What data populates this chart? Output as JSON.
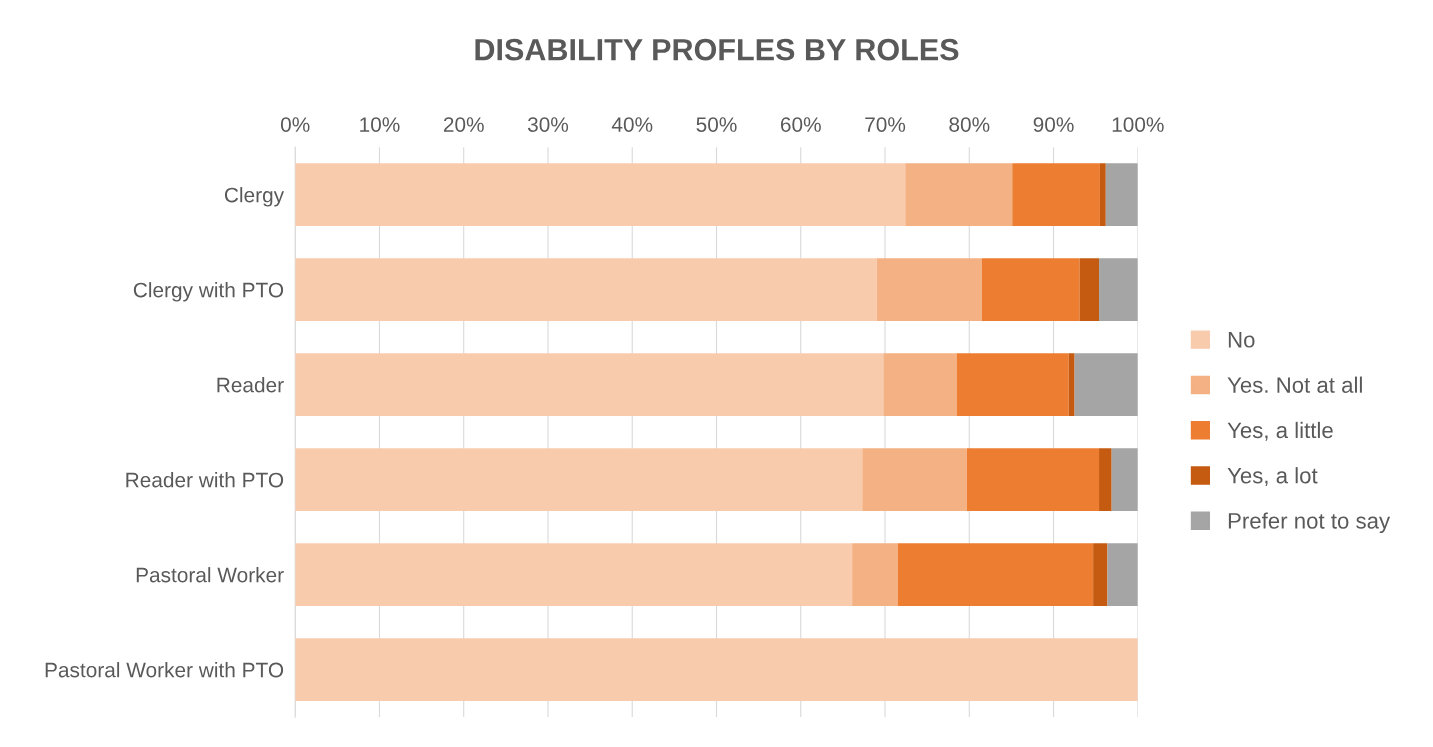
{
  "chart_data": {
    "type": "bar",
    "orientation": "horizontal",
    "stacked": true,
    "title": "DISABILITY PROFLES BY ROLES",
    "categories": [
      "Clergy",
      "Clergy with PTO",
      "Reader",
      "Reader with PTO",
      "Pastoral Worker",
      "Pastoral Worker with PTO"
    ],
    "series": [
      {
        "name": "No",
        "color": "#f8cbad",
        "values": [
          72.4,
          69.0,
          69.8,
          67.3,
          66.1,
          100
        ]
      },
      {
        "name": "Yes. Not at all",
        "color": "#f4b183",
        "values": [
          12.7,
          12.5,
          8.7,
          12.4,
          5.4,
          0
        ]
      },
      {
        "name": "Yes, a little",
        "color": "#ed7d31",
        "values": [
          10.4,
          11.6,
          13.3,
          15.7,
          23.2,
          0
        ]
      },
      {
        "name": "Yes, a lot",
        "color": "#c55a11",
        "values": [
          0.7,
          2.3,
          0.7,
          1.5,
          1.7,
          0
        ]
      },
      {
        "name": "Prefer not to say",
        "color": "#a5a5a5",
        "values": [
          3.8,
          4.6,
          7.5,
          3.1,
          3.6,
          0
        ]
      }
    ],
    "xlim": [
      0,
      100
    ],
    "xticks": [
      {
        "value": 0,
        "label": "0%"
      },
      {
        "value": 10,
        "label": "10%"
      },
      {
        "value": 20,
        "label": "20%"
      },
      {
        "value": 30,
        "label": "30%"
      },
      {
        "value": 40,
        "label": "40%"
      },
      {
        "value": 50,
        "label": "50%"
      },
      {
        "value": 60,
        "label": "60%"
      },
      {
        "value": 70,
        "label": "70%"
      },
      {
        "value": 80,
        "label": "80%"
      },
      {
        "value": 90,
        "label": "90%"
      },
      {
        "value": 100,
        "label": "100%"
      }
    ],
    "grid": "x",
    "legend": "right"
  }
}
